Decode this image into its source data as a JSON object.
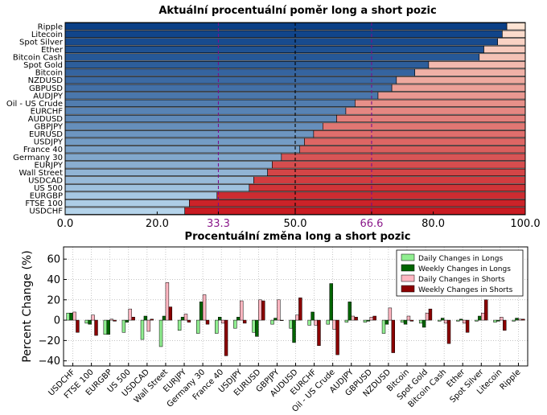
{
  "chart_data": [
    {
      "type": "bar",
      "orientation": "horizontal-stacked",
      "title": "Aktuální procentuální poměr long a short pozic",
      "categories": [
        "Ripple",
        "Litecoin",
        "Spot Silver",
        "Ether",
        "Bitcoin Cash",
        "Spot Gold",
        "Bitcoin",
        "NZDUSD",
        "GBPUSD",
        "AUDJPY",
        "Oil - US Crude",
        "EURCHF",
        "AUDUSD",
        "GBPJPY",
        "EURUSD",
        "USDJPY",
        "France 40",
        "Germany 30",
        "EURJPY",
        "Wall Street",
        "USDCAD",
        "US 500",
        "EURGBP",
        "FTSE 100",
        "USDCHF"
      ],
      "long_values": [
        96,
        95,
        94,
        91,
        90,
        79,
        76,
        72,
        71,
        68,
        63,
        61,
        59,
        56,
        54,
        52,
        51,
        47,
        45,
        44,
        41,
        40,
        33,
        27,
        26
      ],
      "xlim": [
        0,
        100
      ],
      "xticks": [
        "0.0",
        "20.0",
        "33.3",
        "50.0",
        "66.6",
        "80.0",
        "100.0"
      ],
      "reference_lines": [
        33.3,
        50,
        66.6
      ]
    },
    {
      "type": "bar",
      "title": "Procentuální změna long a short pozic",
      "ylabel": "Percent Change (%)",
      "ylim": [
        -45,
        72
      ],
      "yticks": [
        "60",
        "40",
        "20",
        "0",
        "−20",
        "−40"
      ],
      "categories": [
        "USDCHF",
        "FTSE 100",
        "EURGBP",
        "US 500",
        "USDCAD",
        "Wall Street",
        "EURJPY",
        "Germany 30",
        "France 40",
        "USDJPY",
        "EURUSD",
        "GBPJPY",
        "AUDUSD",
        "EURCHF",
        "Oil - US Crude",
        "AUDJPY",
        "GBPUSD",
        "NZDUSD",
        "Bitcoin",
        "Spot Gold",
        "Bitcoin Cash",
        "Ether",
        "Spot Silver",
        "Litecoin",
        "Ripple"
      ],
      "legend_position": "top-right",
      "series": [
        {
          "name": "Daily Changes in Longs",
          "color": "#90ee90",
          "values": [
            7,
            -3,
            -14,
            -12,
            -19,
            -26,
            -10,
            -13,
            -13,
            -8,
            -12,
            -4,
            -8,
            -5,
            -4,
            -2,
            -2,
            -13,
            -2,
            -3,
            -1,
            -1,
            -1,
            -2,
            -1
          ]
        },
        {
          "name": "Weekly Changes in Longs",
          "color": "#006400",
          "values": [
            7,
            -4,
            -14,
            -2,
            4,
            4,
            3,
            18,
            3,
            3,
            -16,
            2,
            -22,
            8,
            36,
            18,
            -1,
            -4,
            -4,
            -7,
            2,
            1,
            4,
            -1,
            2
          ]
        },
        {
          "name": "Daily Changes in Shorts",
          "color": "#ffb6c1",
          "values": [
            8,
            5,
            1,
            11,
            -11,
            37,
            6,
            25,
            -3,
            19,
            20,
            20,
            5,
            -5,
            -9,
            4,
            3,
            12,
            4,
            7,
            -3,
            -3,
            7,
            3,
            1
          ]
        },
        {
          "name": "Weekly Changes in Shorts",
          "color": "#8b0000",
          "values": [
            -12,
            -15,
            -1,
            3,
            1,
            13,
            -2,
            -4,
            -35,
            -3,
            19,
            0,
            22,
            -25,
            -34,
            3,
            4,
            -32,
            -1,
            11,
            -23,
            -12,
            20,
            -10,
            1
          ]
        }
      ]
    }
  ]
}
